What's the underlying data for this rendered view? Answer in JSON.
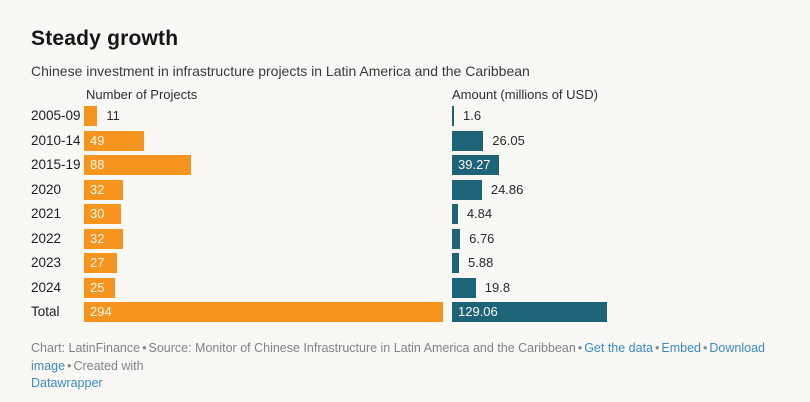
{
  "chart_data": {
    "type": "bar",
    "orientation": "horizontal",
    "title": "Steady growth",
    "subtitle": "Chinese investment in infrastructure projects in Latin America and the Caribbean",
    "categories": [
      "2005-09",
      "2010-14",
      "2015-19",
      "2020",
      "2021",
      "2022",
      "2023",
      "2024",
      "Total"
    ],
    "series": [
      {
        "name": "Number of Projects",
        "color": "#f7941d",
        "values": [
          11,
          49,
          88,
          32,
          30,
          32,
          27,
          25,
          294
        ],
        "xlim": [
          0,
          294
        ]
      },
      {
        "name": "Amount (millions of USD)",
        "color": "#1e6478",
        "values": [
          1.6,
          26.05,
          39.27,
          24.86,
          4.84,
          6.76,
          5.88,
          19.8,
          129.06
        ],
        "xlim": [
          0,
          129.06
        ]
      }
    ],
    "value_labels": "on-bars",
    "grid": false,
    "legend": "column-headers"
  },
  "footer": {
    "credit": "Chart: LatinFinance",
    "source": "Source: Monitor of Chinese Infrastructure in Latin America and the Caribbean",
    "separator": "•",
    "links": {
      "get_data": "Get the data",
      "embed": "Embed",
      "download": "Download image",
      "datawrapper": "Datawrapper"
    },
    "created_with": "Created with"
  },
  "colors": {
    "background": "#f9f8f5",
    "projects_bar": "#f7941d",
    "amount_bar": "#1e6478",
    "link": "#3a8bc2"
  }
}
